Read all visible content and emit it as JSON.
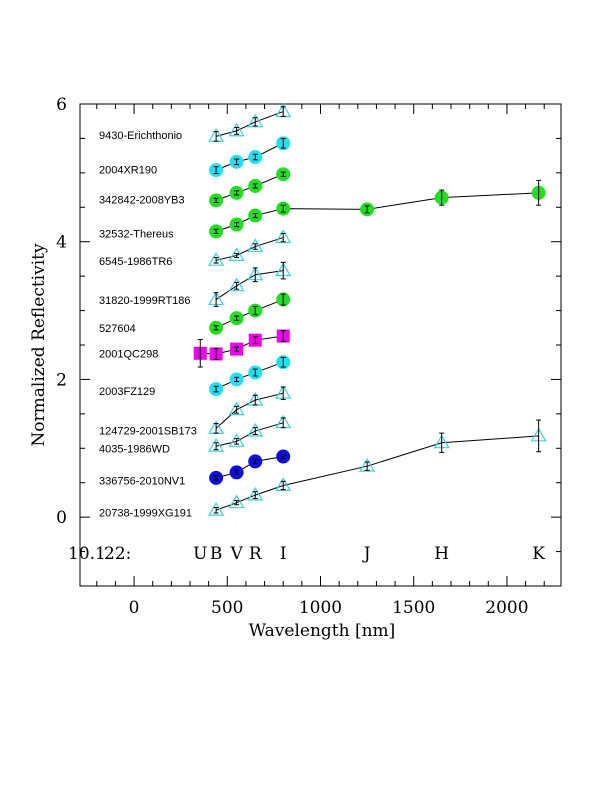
{
  "chart_data": {
    "type": "scatter",
    "xlabel": "Wavelength [nm]",
    "ylabel": "Normalized Reflectivity",
    "xlim": [
      -290,
      2290
    ],
    "ylim": [
      -1,
      6
    ],
    "x_ticks": [
      0,
      500,
      1000,
      1500,
      2000
    ],
    "y_ticks": [
      0,
      2,
      4,
      6
    ],
    "x_tick_labels": [
      "0",
      "500",
      "1000",
      "1500",
      "2000"
    ],
    "y_tick_labels": [
      "0",
      "2",
      "4",
      "6"
    ],
    "grid": false,
    "band_row": {
      "id_label": "22:",
      "value_label": "10.1",
      "bands": [
        {
          "name": "U",
          "x": 355
        },
        {
          "name": "B",
          "x": 440
        },
        {
          "name": "V",
          "x": 550
        },
        {
          "name": "R",
          "x": 650
        },
        {
          "name": "I",
          "x": 800
        },
        {
          "name": "J",
          "x": 1250
        },
        {
          "name": "H",
          "x": 1650
        },
        {
          "name": "K",
          "x": 2170
        }
      ]
    },
    "marker_colors": {
      "triangle": "#3cd0e0",
      "cyan": "#22e0f0",
      "green": "#22dd22",
      "magenta": "#ee00ee",
      "blue": "#0c10dd"
    },
    "series": [
      {
        "name": "9430-Erichthonio",
        "marker": "triangle",
        "x": [
          440,
          550,
          650,
          800
        ],
        "y": [
          5.53,
          5.61,
          5.74,
          5.89
        ],
        "err": [
          0.07,
          0.05,
          0.06,
          0.07
        ]
      },
      {
        "name": "2004XR190",
        "marker": "cyan",
        "x": [
          440,
          550,
          650,
          800
        ],
        "y": [
          5.04,
          5.16,
          5.23,
          5.43
        ],
        "err": [
          0.05,
          0.04,
          0.04,
          0.07
        ]
      },
      {
        "name": "342842-2008YB3",
        "marker": "green",
        "x": [
          440,
          550,
          650,
          800
        ],
        "y": [
          4.6,
          4.71,
          4.81,
          4.98
        ],
        "err": [
          0.03,
          0.03,
          0.03,
          0.03
        ]
      },
      {
        "name": "32532-Thereus",
        "marker": "green",
        "x": [
          440,
          550,
          650,
          800,
          1250,
          1650,
          2170
        ],
        "y": [
          4.15,
          4.25,
          4.38,
          4.48,
          4.47,
          4.64,
          4.71
        ],
        "err": [
          0.03,
          0.03,
          0.03,
          0.05,
          0.05,
          0.11,
          0.18
        ]
      },
      {
        "name": "6545-1986TR6",
        "marker": "triangle",
        "x": [
          440,
          550,
          650,
          800
        ],
        "y": [
          3.73,
          3.8,
          3.93,
          4.06
        ],
        "err": [
          0.04,
          0.03,
          0.04,
          0.06
        ]
      },
      {
        "name": "31820-1999RT186",
        "marker": "triangle",
        "x": [
          440,
          550,
          650,
          800
        ],
        "y": [
          3.16,
          3.36,
          3.52,
          3.58
        ],
        "err": [
          0.1,
          0.05,
          0.1,
          0.12
        ]
      },
      {
        "name": "527604",
        "marker": "green",
        "x": [
          440,
          550,
          650,
          800
        ],
        "y": [
          2.75,
          2.89,
          3.0,
          3.16
        ],
        "err": [
          0.03,
          0.03,
          0.06,
          0.08
        ]
      },
      {
        "name": "2001QC298",
        "marker": "magenta",
        "x": [
          355,
          440,
          550,
          650,
          800
        ],
        "y": [
          2.38,
          2.37,
          2.44,
          2.57,
          2.63
        ],
        "err": [
          0.2,
          0.08,
          0.03,
          0.05,
          0.08
        ]
      },
      {
        "name": "2003FZ129",
        "marker": "cyan",
        "x": [
          440,
          550,
          650,
          800
        ],
        "y": [
          1.86,
          2.0,
          2.1,
          2.25
        ],
        "err": [
          0.04,
          0.03,
          0.05,
          0.07
        ]
      },
      {
        "name": "124729-2001SB173",
        "marker": "triangle",
        "x": [
          440,
          550,
          650,
          800
        ],
        "y": [
          1.29,
          1.56,
          1.7,
          1.8
        ],
        "err": [
          0.07,
          0.05,
          0.07,
          0.09
        ]
      },
      {
        "name": "4035-1986WD",
        "marker": "triangle",
        "x": [
          440,
          550,
          650,
          800
        ],
        "y": [
          1.03,
          1.1,
          1.25,
          1.37
        ],
        "err": [
          0.05,
          0.04,
          0.05,
          0.07
        ]
      },
      {
        "name": "336756-2010NV1",
        "marker": "blue",
        "x": [
          440,
          550,
          650,
          800
        ],
        "y": [
          0.57,
          0.65,
          0.81,
          0.88
        ],
        "err": [
          0.03,
          0.03,
          0.03,
          0.03
        ]
      },
      {
        "name": "20738-1999XG191",
        "marker": "triangle",
        "x": [
          440,
          550,
          650,
          800,
          1250,
          1650,
          2170
        ],
        "y": [
          0.1,
          0.21,
          0.32,
          0.46,
          0.74,
          1.08,
          1.18
        ],
        "err": [
          0.04,
          0.03,
          0.05,
          0.06,
          0.06,
          0.14,
          0.23
        ]
      }
    ],
    "label_y": [
      5.55,
      5.05,
      4.61,
      4.12,
      3.72,
      3.15,
      2.75,
      2.38,
      1.83,
      1.26,
      1.0,
      0.53,
      0.07
    ]
  }
}
